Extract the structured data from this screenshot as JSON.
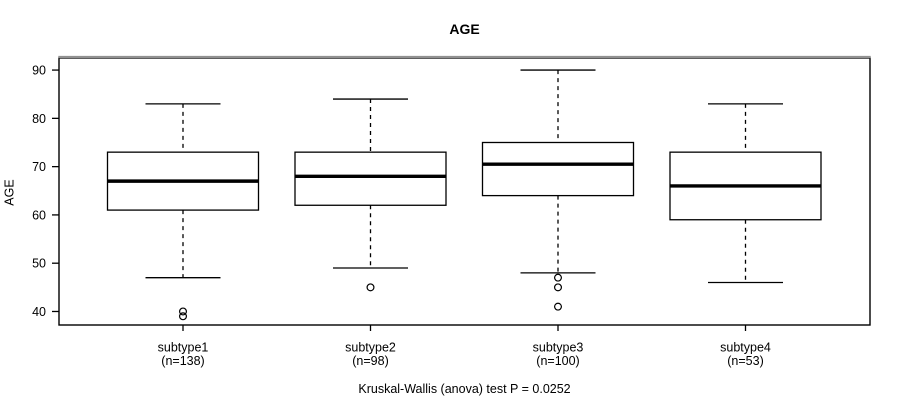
{
  "chart_data": {
    "type": "boxplot",
    "title": "AGE",
    "ylabel": "AGE",
    "footer": "Kruskal-Wallis (anova) test P = 0.0252",
    "y_ticks": [
      40,
      50,
      60,
      70,
      80,
      90
    ],
    "ylim": [
      37.2,
      92.5
    ],
    "grid": false,
    "legend": "none",
    "groups": [
      {
        "label": "subtype1",
        "sublabel": "(n=138)",
        "n": 138,
        "whisker_low": 47,
        "q1": 61,
        "median": 67,
        "q3": 73,
        "whisker_high": 83,
        "outliers": [
          40,
          39
        ]
      },
      {
        "label": "subtype2",
        "sublabel": "(n=98)",
        "n": 98,
        "whisker_low": 49,
        "q1": 62,
        "median": 68,
        "q3": 73,
        "whisker_high": 84,
        "outliers": [
          45
        ]
      },
      {
        "label": "subtype3",
        "sublabel": "(n=100)",
        "n": 100,
        "whisker_low": 48,
        "q1": 64,
        "median": 70.5,
        "q3": 75,
        "whisker_high": 90,
        "outliers": [
          47,
          45,
          41
        ]
      },
      {
        "label": "subtype4",
        "sublabel": "(n=53)",
        "n": 53,
        "whisker_low": 46,
        "q1": 59,
        "median": 66,
        "q3": 73,
        "whisker_high": 83,
        "outliers": []
      }
    ],
    "colors": {
      "line": "#000000",
      "box_fill": "#ffffff",
      "frame_top": "#919191",
      "background": "#ffffff"
    }
  }
}
